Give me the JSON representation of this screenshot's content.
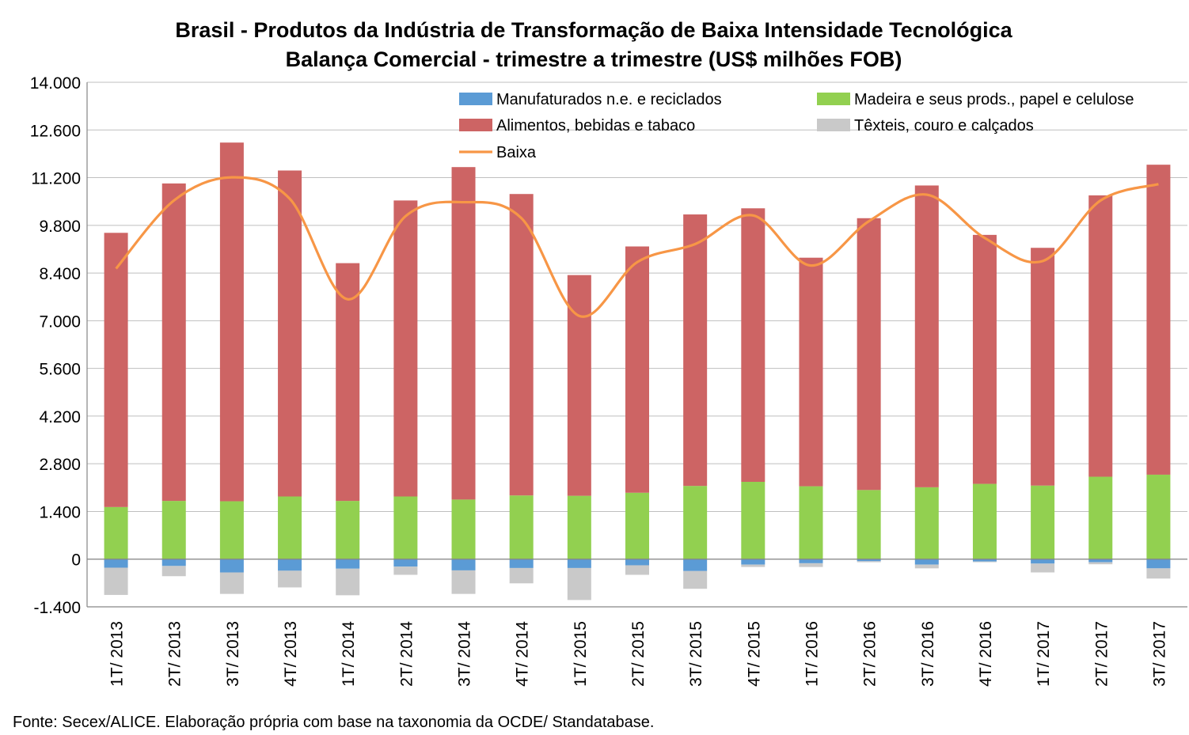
{
  "chart_data": {
    "type": "bar",
    "stacked": true,
    "title_line1": "Brasil - Produtos da Indústria de Transformação de Baixa Intensidade Tecnológica",
    "title_line2": "Balança Comercial - trimestre a trimestre (US$ milhões FOB)",
    "ylim": [
      -1400,
      14000
    ],
    "yticks": [
      -1400,
      0,
      1400,
      2800,
      4200,
      5600,
      7000,
      8400,
      9800,
      11200,
      12600,
      14000
    ],
    "ytick_labels": [
      "-1.400",
      "0",
      "1.400",
      "2.800",
      "4.200",
      "5.600",
      "7.000",
      "8.400",
      "9.800",
      "11.200",
      "12.600",
      "14.000"
    ],
    "categories": [
      "1T/ 2013",
      "2T/ 2013",
      "3T/ 2013",
      "4T/ 2013",
      "1T/ 2014",
      "2T/ 2014",
      "3T/ 2014",
      "4T/ 2014",
      "1T/ 2015",
      "2T/ 2015",
      "3T/ 2015",
      "4T/ 2015",
      "1T/ 2016",
      "2T/ 2016",
      "3T/ 2016",
      "4T/ 2016",
      "1T/ 2017",
      "2T/ 2017",
      "3T/ 2017"
    ],
    "legend_position": "top-right",
    "grid": true,
    "series": [
      {
        "name": "Manufaturados n.e. e reciclados",
        "kind": "bar",
        "color": "#5B9BD5",
        "values": [
          -250,
          -200,
          -390,
          -340,
          -280,
          -220,
          -330,
          -260,
          -260,
          -180,
          -350,
          -160,
          -120,
          -60,
          -160,
          -70,
          -130,
          -90,
          -270
        ]
      },
      {
        "name": "Madeira e seus prods., papel e celulose",
        "kind": "bar",
        "color": "#92D050",
        "values": [
          1530,
          1710,
          1700,
          1840,
          1710,
          1840,
          1750,
          1870,
          1860,
          1950,
          2150,
          2270,
          2140,
          2030,
          2110,
          2210,
          2160,
          2420,
          2480
        ]
      },
      {
        "name": "Alimentos, bebidas e tabaco",
        "kind": "bar",
        "color": "#CD6464",
        "values": [
          8050,
          9320,
          10530,
          9570,
          6980,
          8690,
          9760,
          8850,
          6480,
          7230,
          7970,
          8030,
          6710,
          7980,
          8860,
          7310,
          6980,
          8260,
          9100
        ]
      },
      {
        "name": "Têxteis, couro e calçados",
        "kind": "bar",
        "color": "#C9C9C9",
        "values": [
          -800,
          -300,
          -630,
          -490,
          -780,
          -240,
          -690,
          -450,
          -940,
          -280,
          -520,
          -70,
          -110,
          -30,
          -110,
          -20,
          -260,
          -60,
          -300
        ]
      },
      {
        "name": "Baixa",
        "kind": "line",
        "color": "#F79646",
        "values": [
          8530,
          10530,
          11210,
          10580,
          7630,
          10070,
          10480,
          10010,
          7140,
          8720,
          9250,
          10090,
          8620,
          9920,
          10700,
          9430,
          8750,
          10530,
          11010
        ]
      }
    ]
  },
  "footer": {
    "source": "Fonte: Secex/ALICE. Elaboração própria com base na taxonomia da OCDE/ Standatabase."
  }
}
